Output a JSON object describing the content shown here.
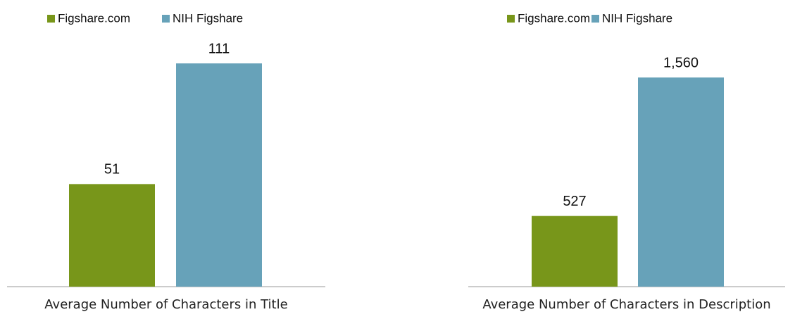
{
  "chart_data": [
    {
      "type": "bar",
      "xlabel": "Average Number of Characters in Title",
      "series": [
        {
          "name": "Figshare.com",
          "color": "#78961a",
          "values": [
            51
          ]
        },
        {
          "name": "NIH Figshare",
          "color": "#67a2b9",
          "values": [
            111
          ]
        }
      ]
    },
    {
      "type": "bar",
      "xlabel": "Average Number of Characters in Description",
      "series": [
        {
          "name": "Figshare.com",
          "color": "#78961a",
          "values": [
            527
          ]
        },
        {
          "name": "NIH Figshare",
          "color": "#67a2b9",
          "values": [
            1560
          ],
          "value_labels": [
            "1,560"
          ]
        }
      ]
    }
  ]
}
